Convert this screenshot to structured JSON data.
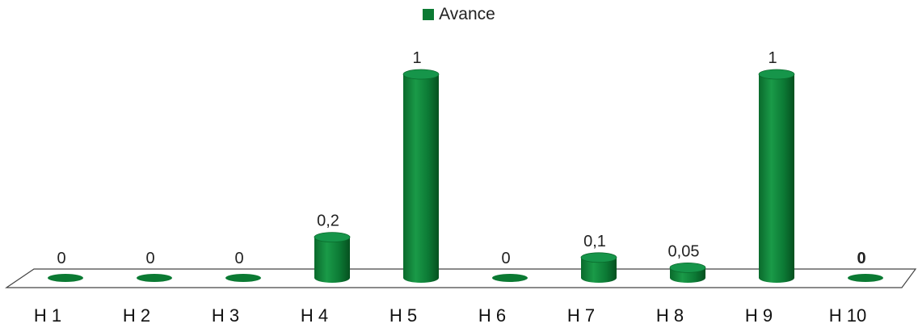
{
  "chart_data": {
    "type": "bar",
    "style": "3d-cylinder",
    "categories": [
      "H 1",
      "H 2",
      "H 3",
      "H 4",
      "H 5",
      "H 6",
      "H 7",
      "H 8",
      "H 9",
      "H 10"
    ],
    "series": [
      {
        "name": "Avance",
        "color": "#0b7a33",
        "values": [
          0,
          0,
          0,
          0.2,
          1,
          0,
          0.1,
          0.05,
          1,
          0
        ]
      }
    ],
    "data_labels": [
      "0",
      "0",
      "0",
      "0,2",
      "1",
      "0",
      "0,1",
      "0,05",
      "1",
      "0"
    ],
    "ylim": [
      0,
      1
    ],
    "legend_position": "top-center",
    "grid": false
  }
}
